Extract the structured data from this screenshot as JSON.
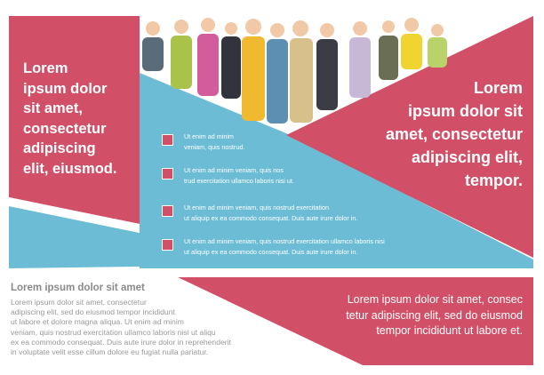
{
  "left_heading": {
    "lines": [
      "Lorem",
      "ipsum dolor",
      "sit amet,",
      "consectetur",
      "adipiscing",
      "elit, eiusmod."
    ]
  },
  "right_heading": {
    "lines": [
      "Lorem",
      "ipsum dolor sit",
      "amet, consectetur",
      "adipiscing elit,",
      "tempor."
    ]
  },
  "list": {
    "items": [
      {
        "lines": [
          "Ut enim ad minim",
          "veniam, quis nostrud."
        ]
      },
      {
        "lines": [
          "Ut enim ad minim veniam, quis nos",
          "trud exercitation ullamco laboris nisi ut."
        ]
      },
      {
        "lines": [
          "Ut enim ad minim veniam, quis nostrud exercitation",
          "ut aliquip ex ea commodo consequat. Duis aute irure dolor in."
        ]
      },
      {
        "lines": [
          "Ut enim ad minim veniam, quis nostrud exercitation ullamco laboris nisi",
          "ut aliquip ex ea commodo consequat. Duis aute irure dolor in."
        ]
      }
    ]
  },
  "bottom_left": {
    "title": "Lorem ipsum dolor sit amet",
    "lines": [
      "Lorem ipsum dolor sit amet, consectetur",
      "adipiscing elit, sed do eiusmod tempor incididunt",
      "ut labore et dolore magna aliqua. Ut enim ad minim",
      "veniam, quis nostrud exercitation ullamco laboris nisi ut aliqu",
      "ex ea commodo consequat. Duis aute irure dolor in reprehenderit",
      "in voluptate velit esse cillum dolore eu fugiat nulla pariatur."
    ]
  },
  "bottom_right": {
    "lines": [
      "Lorem ipsum dolor sit amet, consec",
      "tetur adipiscing elit, sed do eiusmod",
      "tempor incididunt ut labore et."
    ]
  }
}
